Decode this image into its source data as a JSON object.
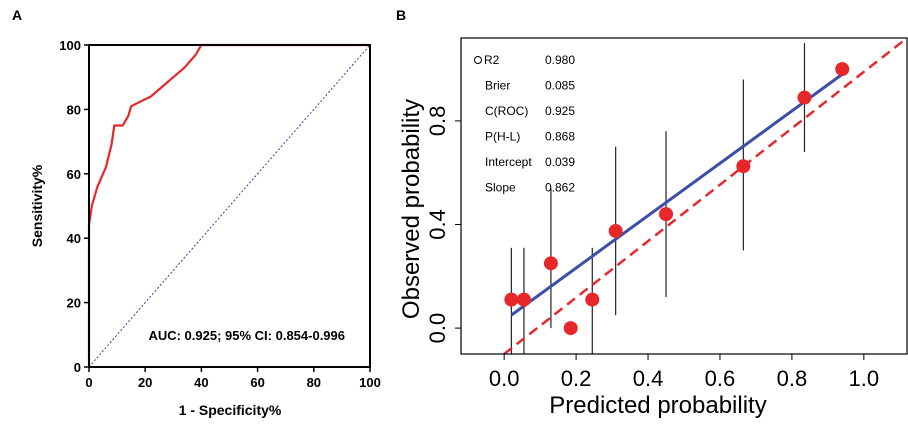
{
  "chart_data": [
    {
      "panel_label": "A",
      "type": "line",
      "xlabel": "1 - Specificity%",
      "ylabel": "Sensitivity%",
      "xlim": [
        0,
        100
      ],
      "ylim": [
        0,
        100
      ],
      "xticks": [
        "0",
        "20",
        "40",
        "60",
        "80",
        "100"
      ],
      "yticks": [
        "0",
        "20",
        "40",
        "60",
        "80",
        "100"
      ],
      "annotation": "AUC: 0.925; 95% CI: 0.854-0.996",
      "series": [
        {
          "color": "#e8272a",
          "style": "solid",
          "x": [
            0,
            0,
            1,
            3,
            6,
            8,
            9,
            10,
            12,
            14,
            15,
            22,
            26,
            30,
            34,
            38,
            40,
            100
          ],
          "y": [
            0,
            44,
            50,
            56,
            62,
            69,
            75,
            75,
            75,
            78,
            81,
            84,
            87,
            90,
            93,
            97,
            100,
            100
          ]
        },
        {
          "color": "#3b3ba6",
          "style": "dotted",
          "x": [
            0,
            100
          ],
          "y": [
            0,
            100
          ]
        }
      ]
    },
    {
      "panel_label": "B",
      "type": "scatter",
      "xlabel": "Predicted probability",
      "ylabel": "Observed probability",
      "xlim": [
        -0.12,
        1.12
      ],
      "ylim": [
        -0.1,
        1.12
      ],
      "xticks": [
        "0.0",
        "0.2",
        "0.4",
        "0.6",
        "0.8",
        "1.0"
      ],
      "yticks": [
        "0.0",
        "0.4",
        "0.8"
      ],
      "stats": [
        {
          "label": "R2",
          "value": "0.980"
        },
        {
          "label": "Brier",
          "value": "0.085"
        },
        {
          "label": "C(ROC)",
          "value": "0.925"
        },
        {
          "label": "P(H-L)",
          "value": "0.868"
        },
        {
          "label": "Intercept",
          "value": "0.039"
        },
        {
          "label": "Slope",
          "value": "0.862"
        }
      ],
      "points": {
        "color": "#e8272a",
        "x": [
          0.02,
          0.055,
          0.13,
          0.185,
          0.245,
          0.31,
          0.45,
          0.665,
          0.835,
          0.94
        ],
        "y": [
          0.11,
          0.11,
          0.25,
          0.0,
          0.11,
          0.375,
          0.44,
          0.625,
          0.89,
          1.0
        ],
        "ci_low": [
          -0.1,
          -0.1,
          0.0,
          -0.1,
          -0.1,
          0.05,
          0.12,
          0.3,
          0.68,
          1.0
        ],
        "ci_high": [
          0.31,
          0.31,
          0.54,
          -0.1,
          0.31,
          0.7,
          0.76,
          0.96,
          1.1,
          1.0
        ]
      },
      "fit_line": {
        "color": "#3e4ea8",
        "x": [
          0.02,
          0.94
        ],
        "y": [
          0.05,
          0.98
        ]
      },
      "ideal_line": {
        "color": "#e8272a",
        "style": "dashed",
        "x": [
          0,
          1.12
        ],
        "y": [
          -0.1,
          1.12
        ]
      }
    }
  ]
}
